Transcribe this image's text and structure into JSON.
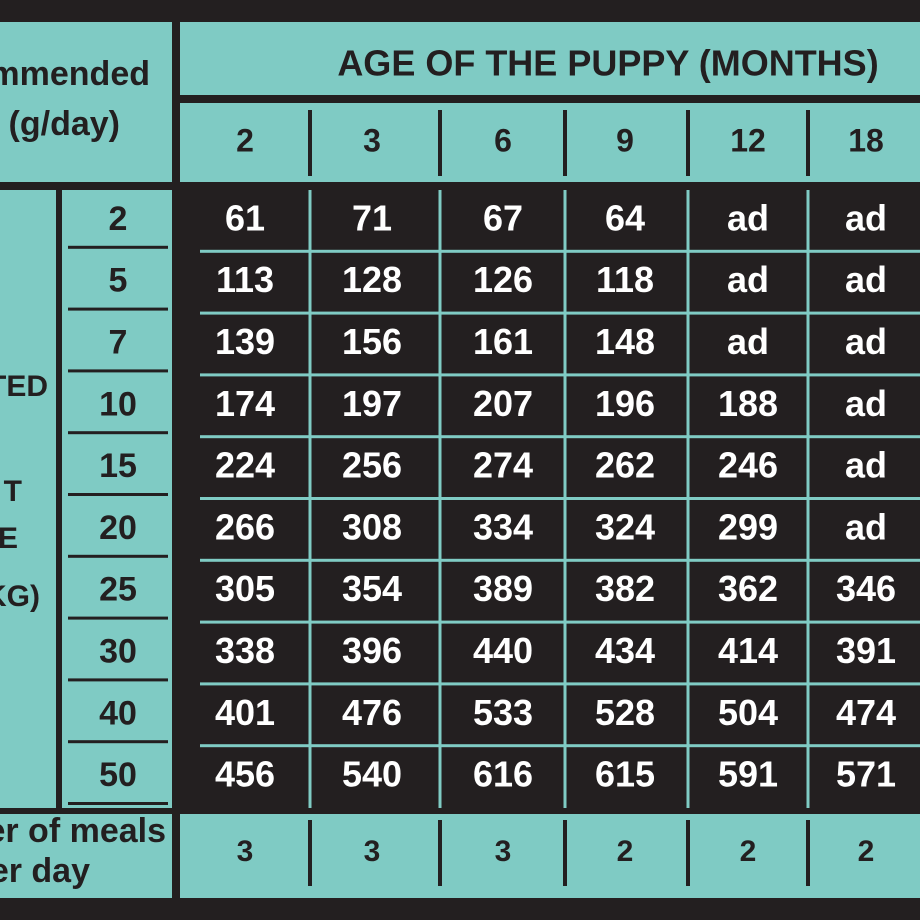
{
  "header": {
    "left_line1": "mmended",
    "left_line2": "(g/day)",
    "title": "AGE OF THE PUPPY (MONTHS)"
  },
  "ages": [
    "2",
    "3",
    "6",
    "9",
    "12",
    "18"
  ],
  "side_label": [
    "TED",
    "T",
    "E",
    "KG)"
  ],
  "rows": [
    {
      "weight": "2",
      "values": [
        "61",
        "71",
        "67",
        "64",
        "ad",
        "ad"
      ]
    },
    {
      "weight": "5",
      "values": [
        "113",
        "128",
        "126",
        "118",
        "ad",
        "ad"
      ]
    },
    {
      "weight": "7",
      "values": [
        "139",
        "156",
        "161",
        "148",
        "ad",
        "ad"
      ]
    },
    {
      "weight": "10",
      "values": [
        "174",
        "197",
        "207",
        "196",
        "188",
        "ad"
      ]
    },
    {
      "weight": "15",
      "values": [
        "224",
        "256",
        "274",
        "262",
        "246",
        "ad"
      ]
    },
    {
      "weight": "20",
      "values": [
        "266",
        "308",
        "334",
        "324",
        "299",
        "ad"
      ]
    },
    {
      "weight": "25",
      "values": [
        "305",
        "354",
        "389",
        "382",
        "362",
        "346"
      ]
    },
    {
      "weight": "30",
      "values": [
        "338",
        "396",
        "440",
        "434",
        "414",
        "391"
      ]
    },
    {
      "weight": "40",
      "values": [
        "401",
        "476",
        "533",
        "528",
        "504",
        "474"
      ]
    },
    {
      "weight": "50",
      "values": [
        "456",
        "540",
        "616",
        "615",
        "591",
        "571"
      ]
    }
  ],
  "meals": {
    "label_line1": "er of meals",
    "label_line2": "er day",
    "values": [
      "3",
      "3",
      "3",
      "2",
      "2",
      "2"
    ]
  }
}
